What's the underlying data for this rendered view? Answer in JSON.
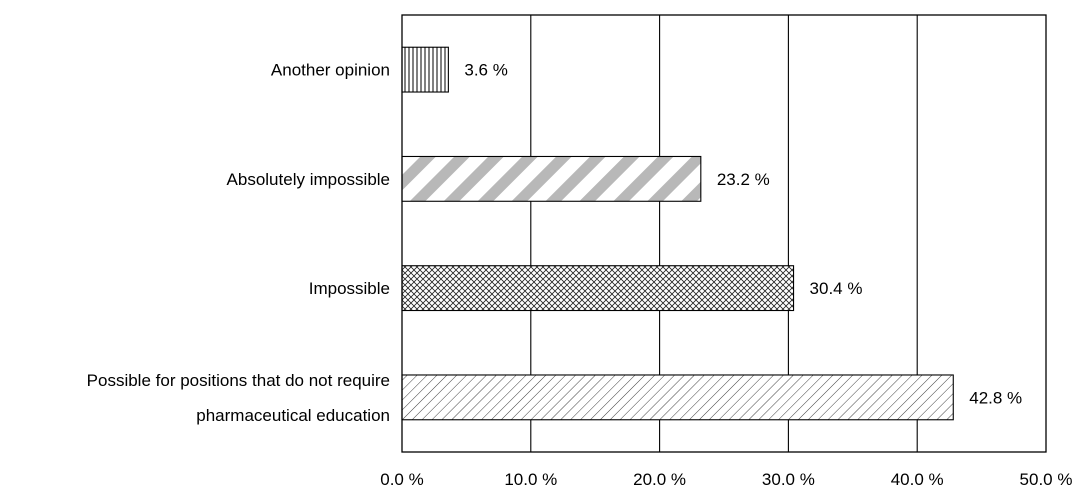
{
  "chart_data": {
    "type": "bar",
    "orientation": "horizontal",
    "categories": [
      [
        "Another opinion"
      ],
      [
        "Absolutely impossible"
      ],
      [
        "Impossible"
      ],
      [
        "Possible for positions that do not require",
        "pharmaceutical education"
      ]
    ],
    "values": [
      3.6,
      23.2,
      30.4,
      42.8
    ],
    "value_labels": [
      "3.6 %",
      "23.2 %",
      "30.4 %",
      "42.8 %"
    ],
    "patterns": [
      "vertical-lines",
      "wide-diagonal-stripes",
      "crosshatch",
      "fine-diagonal-lines"
    ],
    "xlim": [
      0,
      50
    ],
    "xticks": [
      0,
      10,
      20,
      30,
      40,
      50
    ],
    "xtick_labels": [
      "0.0 %",
      "10.0 %",
      "20.0 %",
      "30.0 %",
      "40.0 %",
      "50.0 %"
    ],
    "grid": "vertical",
    "title": "",
    "xlabel": "",
    "ylabel": ""
  }
}
